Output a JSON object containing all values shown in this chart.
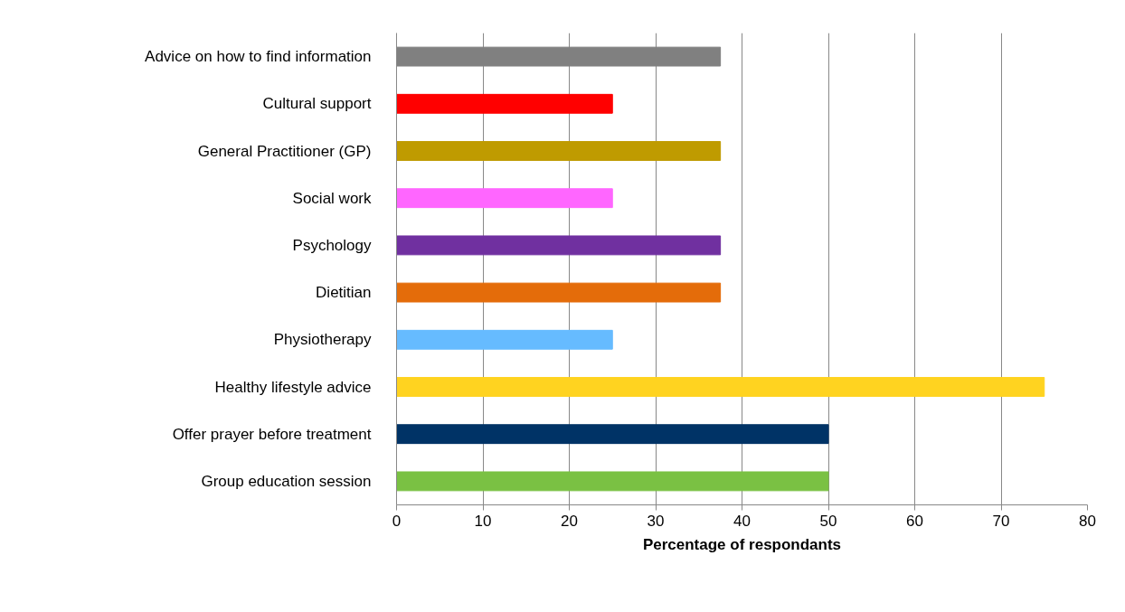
{
  "chart_data": {
    "type": "bar",
    "orientation": "horizontal",
    "xlabel": "Percentage of respondants",
    "categories": [
      "Advice on how to find information",
      "Cultural support",
      "General Practitioner (GP)",
      "Social work",
      "Psychology",
      "Dietitian",
      "Physiotherapy",
      "Healthy lifestyle advice",
      "Offer prayer before treatment",
      "Group education session"
    ],
    "values": [
      37.5,
      25,
      37.5,
      25,
      37.5,
      37.5,
      25,
      75,
      50,
      50
    ],
    "colors": [
      "#808080",
      "#ff0000",
      "#bf9b00",
      "#ff66ff",
      "#7030a0",
      "#e46c0a",
      "#66bbff",
      "#ffd320",
      "#003366",
      "#7ac143"
    ],
    "xlim": [
      0,
      80
    ],
    "xticks": [
      0,
      10,
      20,
      30,
      40,
      50,
      60,
      70,
      80
    ],
    "grid": "x"
  }
}
